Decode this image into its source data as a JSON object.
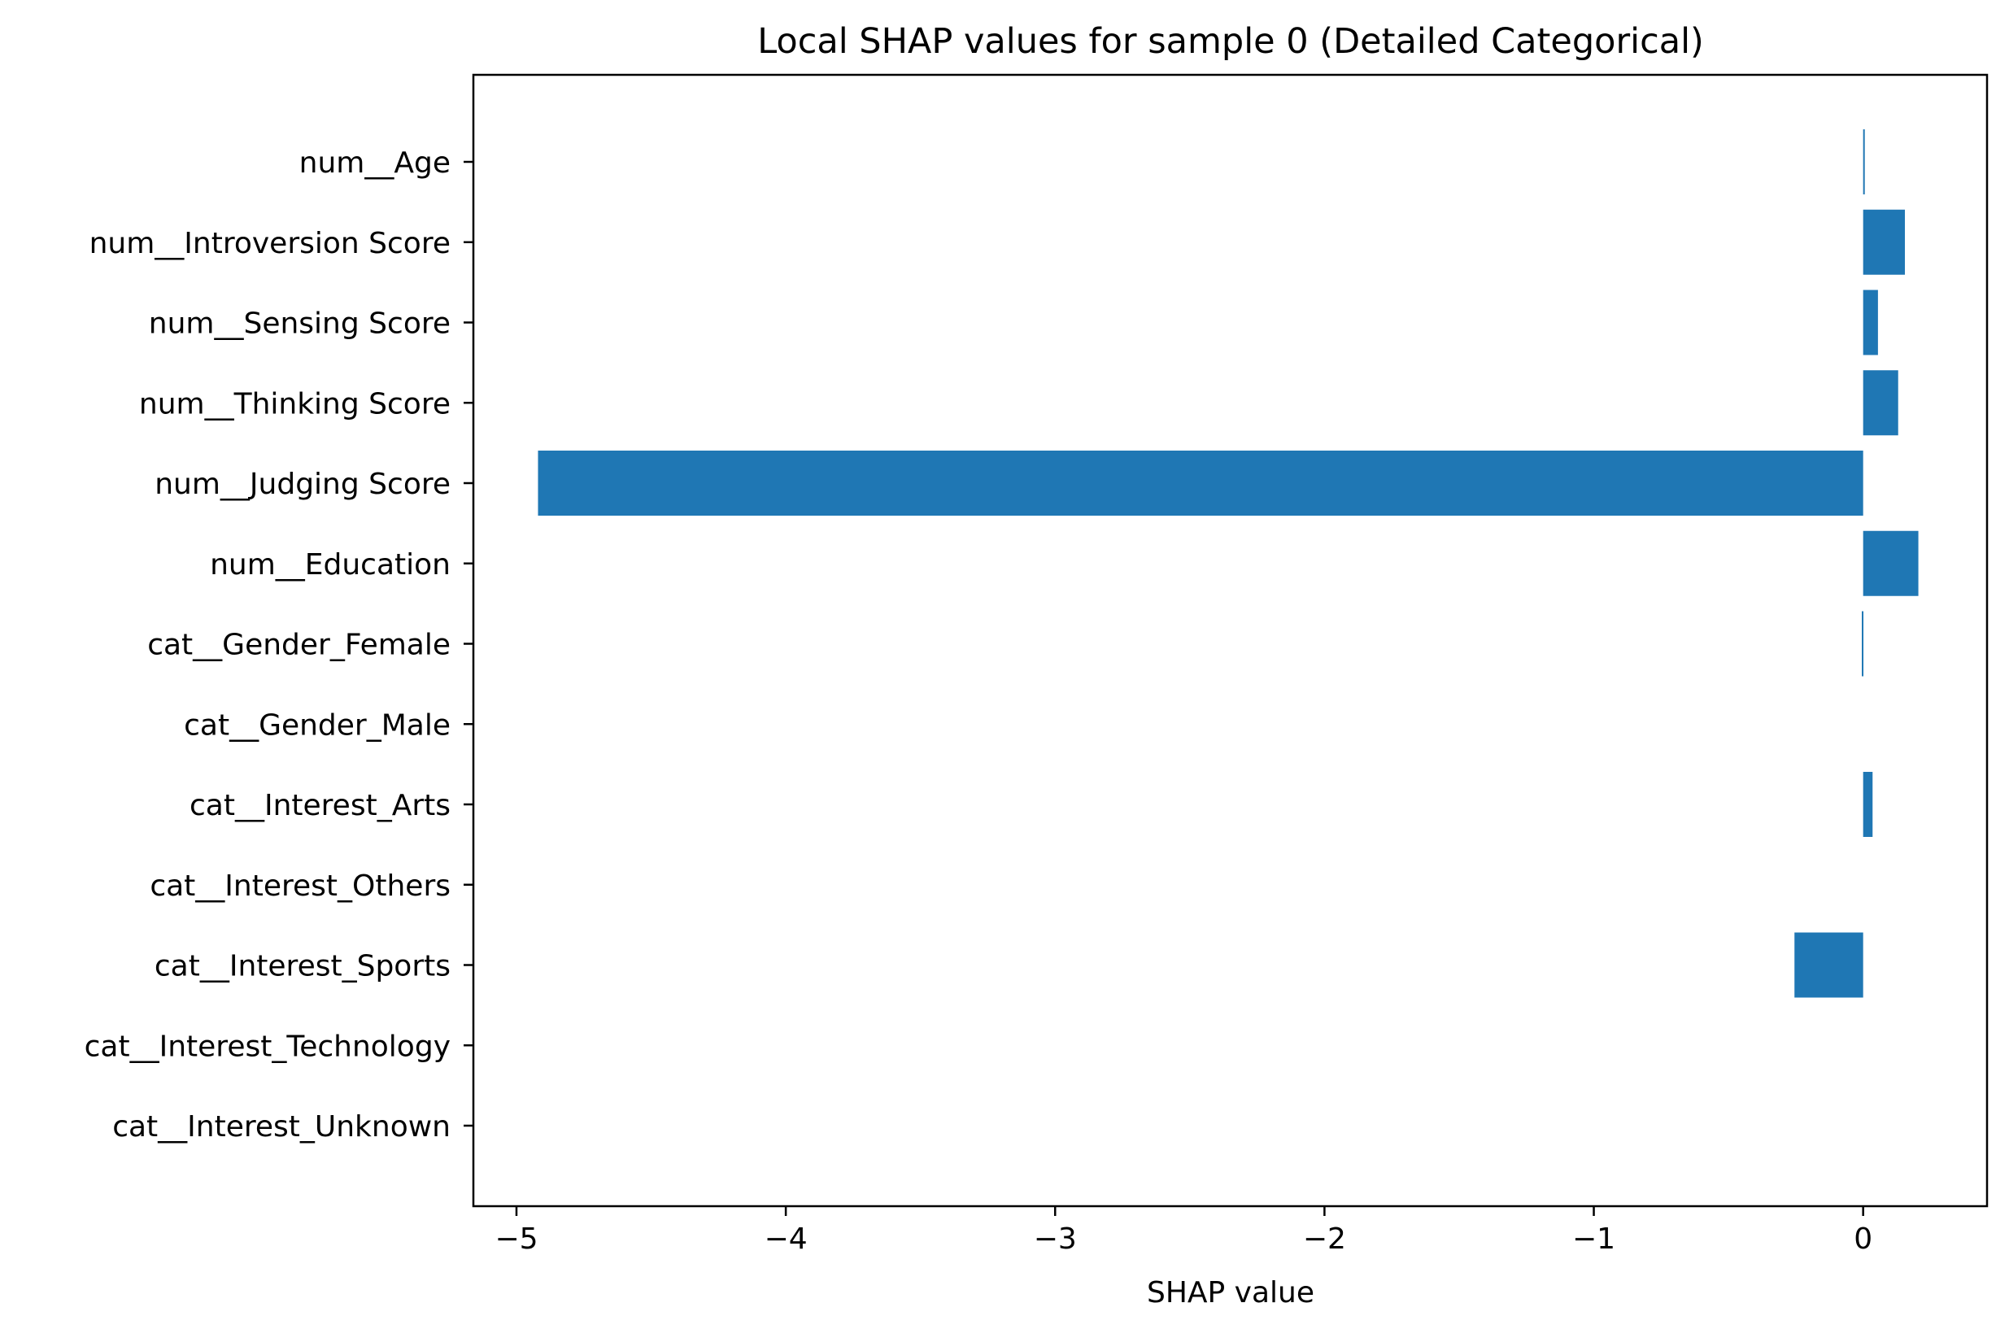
{
  "chart_data": {
    "type": "bar",
    "orientation": "horizontal",
    "title": "Local SHAP values for sample 0 (Detailed Categorical)",
    "xlabel": "SHAP value",
    "ylabel": "",
    "categories": [
      "num__Age",
      "num__Introversion Score",
      "num__Sensing Score",
      "num__Thinking Score",
      "num__Judging Score",
      "num__Education",
      "cat__Gender_Female",
      "cat__Gender_Male",
      "cat__Interest_Arts",
      "cat__Interest_Others",
      "cat__Interest_Sports",
      "cat__Interest_Technology",
      "cat__Interest_Unknown"
    ],
    "values": [
      0.005,
      0.155,
      0.055,
      0.13,
      -4.92,
      0.205,
      -0.005,
      0.0,
      0.035,
      0.0,
      -0.255,
      0.0,
      0.0
    ],
    "xlim": [
      -5.16,
      0.46
    ],
    "xticks": [
      -5,
      -4,
      -3,
      -2,
      -1,
      0
    ],
    "xtick_labels": [
      "−5",
      "−4",
      "−3",
      "−2",
      "−1",
      "0"
    ],
    "bar_color": "#1f77b4",
    "grid": false,
    "legend": "none"
  }
}
